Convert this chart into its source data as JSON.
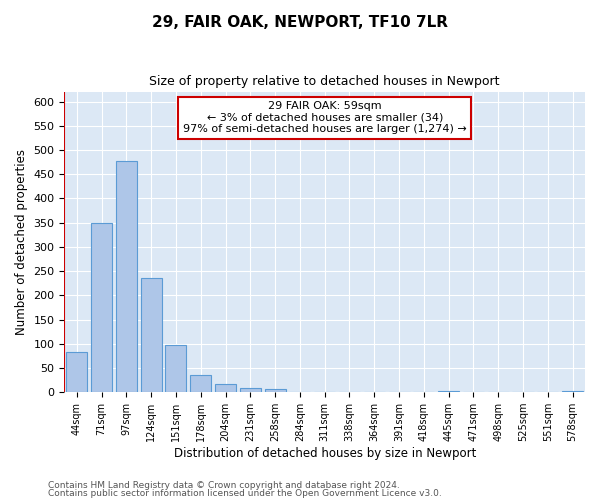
{
  "title": "29, FAIR OAK, NEWPORT, TF10 7LR",
  "subtitle": "Size of property relative to detached houses in Newport",
  "xlabel": "Distribution of detached houses by size in Newport",
  "ylabel": "Number of detached properties",
  "bar_labels": [
    "44sqm",
    "71sqm",
    "97sqm",
    "124sqm",
    "151sqm",
    "178sqm",
    "204sqm",
    "231sqm",
    "258sqm",
    "284sqm",
    "311sqm",
    "338sqm",
    "364sqm",
    "391sqm",
    "418sqm",
    "445sqm",
    "471sqm",
    "498sqm",
    "525sqm",
    "551sqm",
    "578sqm"
  ],
  "bar_values": [
    83,
    350,
    478,
    236,
    97,
    35,
    17,
    8,
    6,
    0,
    0,
    0,
    0,
    0,
    0,
    2,
    0,
    0,
    0,
    0,
    3
  ],
  "bar_color": "#aec6e8",
  "bar_edge_color": "#5b9bd5",
  "annotation_title": "29 FAIR OAK: 59sqm",
  "annotation_line1": "← 3% of detached houses are smaller (34)",
  "annotation_line2": "97% of semi-detached houses are larger (1,274) →",
  "annotation_box_color": "#ffffff",
  "annotation_box_edge_color": "#cc0000",
  "ylim": [
    0,
    620
  ],
  "yticks": [
    0,
    50,
    100,
    150,
    200,
    250,
    300,
    350,
    400,
    450,
    500,
    550,
    600
  ],
  "footnote1": "Contains HM Land Registry data © Crown copyright and database right 2024.",
  "footnote2": "Contains public sector information licensed under the Open Government Licence v3.0.",
  "plot_bg_color": "#dce8f5",
  "fig_bg_color": "#ffffff",
  "grid_color": "#ffffff",
  "redline_color": "#cc0000"
}
